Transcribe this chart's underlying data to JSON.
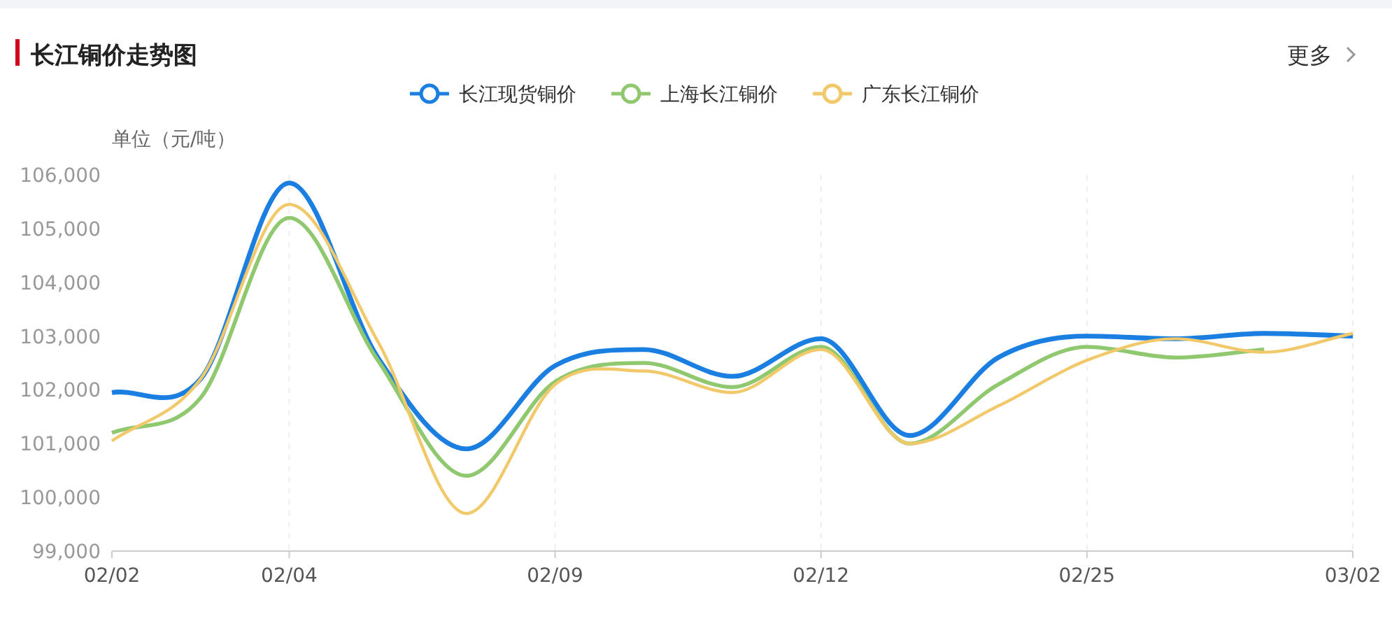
{
  "chart_data": {
    "type": "line",
    "title": "长江铜价走势图",
    "ylabel": "单位（元/吨）",
    "annotations": [
      "更多"
    ],
    "categories": [
      "02/02",
      null,
      "02/04",
      null,
      null,
      "02/09",
      null,
      null,
      "02/12",
      null,
      null,
      "02/25",
      null,
      null,
      "03/02"
    ],
    "series": [
      {
        "name": "长江现货铜价",
        "color": "#1a7fe0",
        "values": [
          101950,
          102200,
          105850,
          102600,
          100900,
          102450,
          102750,
          102250,
          102950,
          101150,
          102600,
          103000,
          102950,
          103050,
          103000
        ]
      },
      {
        "name": "上海长江铜价",
        "color": "#8fc86e",
        "values": [
          101200,
          101850,
          105200,
          102550,
          100400,
          102150,
          102500,
          102050,
          102800,
          101000,
          102100,
          102800,
          102600,
          102750,
          null
        ]
      },
      {
        "name": "广东长江铜价",
        "color": "#f2c96a",
        "values": [
          101050,
          102200,
          105450,
          102900,
          99700,
          102100,
          102350,
          101950,
          102750,
          101000,
          101700,
          102550,
          102950,
          102700,
          103050
        ]
      }
    ],
    "ylim": [
      99000,
      106000
    ],
    "yticks": [
      {
        "value": 99000,
        "label": "99,000"
      },
      {
        "value": 100000,
        "label": "100,000"
      },
      {
        "value": 101000,
        "label": "101,000"
      },
      {
        "value": 102000,
        "label": "102,000"
      },
      {
        "value": 103000,
        "label": "103,000"
      },
      {
        "value": 104000,
        "label": "104,000"
      },
      {
        "value": 105000,
        "label": "105,000"
      },
      {
        "value": 106000,
        "label": "106,000"
      }
    ],
    "grid": "x",
    "legend": "top",
    "marker": "none",
    "line_style": "solid"
  }
}
